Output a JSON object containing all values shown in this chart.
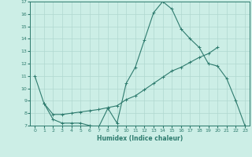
{
  "title": "",
  "xlabel": "Humidex (Indice chaleur)",
  "ylabel": "",
  "bg_color": "#cceee6",
  "grid_color": "#b0d8d0",
  "line_color": "#2e7b6e",
  "xlim": [
    -0.5,
    23.5
  ],
  "ylim": [
    7,
    17
  ],
  "yticks": [
    7,
    8,
    9,
    10,
    11,
    12,
    13,
    14,
    15,
    16,
    17
  ],
  "xticks": [
    0,
    1,
    2,
    3,
    4,
    5,
    6,
    7,
    8,
    9,
    10,
    11,
    12,
    13,
    14,
    15,
    16,
    17,
    18,
    19,
    20,
    21,
    22,
    23
  ],
  "line1_x": [
    0,
    1,
    2,
    3,
    4,
    5,
    6,
    7,
    8,
    9,
    10,
    11,
    12,
    13,
    14,
    15,
    16,
    17,
    18,
    19,
    20,
    21,
    22,
    23
  ],
  "line1_y": [
    11,
    8.8,
    7.5,
    7.2,
    7.2,
    7.2,
    7.0,
    6.9,
    8.4,
    7.2,
    10.4,
    11.7,
    13.9,
    16.1,
    17.0,
    16.4,
    14.8,
    14.0,
    13.3,
    12.0,
    11.8,
    10.8,
    9.0,
    7.0
  ],
  "line2_x": [
    1,
    2,
    3,
    4,
    5,
    6,
    7,
    8,
    9,
    10,
    11,
    12,
    13,
    14,
    15,
    16,
    17,
    18,
    19,
    20
  ],
  "line2_y": [
    8.8,
    7.9,
    7.9,
    8.0,
    8.1,
    8.2,
    8.3,
    8.45,
    8.6,
    9.1,
    9.4,
    9.9,
    10.4,
    10.9,
    11.4,
    11.7,
    12.1,
    12.5,
    12.8,
    13.3
  ],
  "line3_x": [
    6,
    7,
    8,
    9,
    10,
    11,
    12,
    13,
    14,
    15,
    16,
    17,
    18,
    19,
    20,
    21,
    22,
    23
  ],
  "line3_y": [
    7.0,
    7.0,
    7.0,
    7.0,
    7.0,
    7.0,
    7.0,
    7.0,
    7.0,
    7.0,
    7.0,
    7.0,
    7.0,
    7.0,
    7.0,
    7.0,
    7.0,
    7.0
  ]
}
